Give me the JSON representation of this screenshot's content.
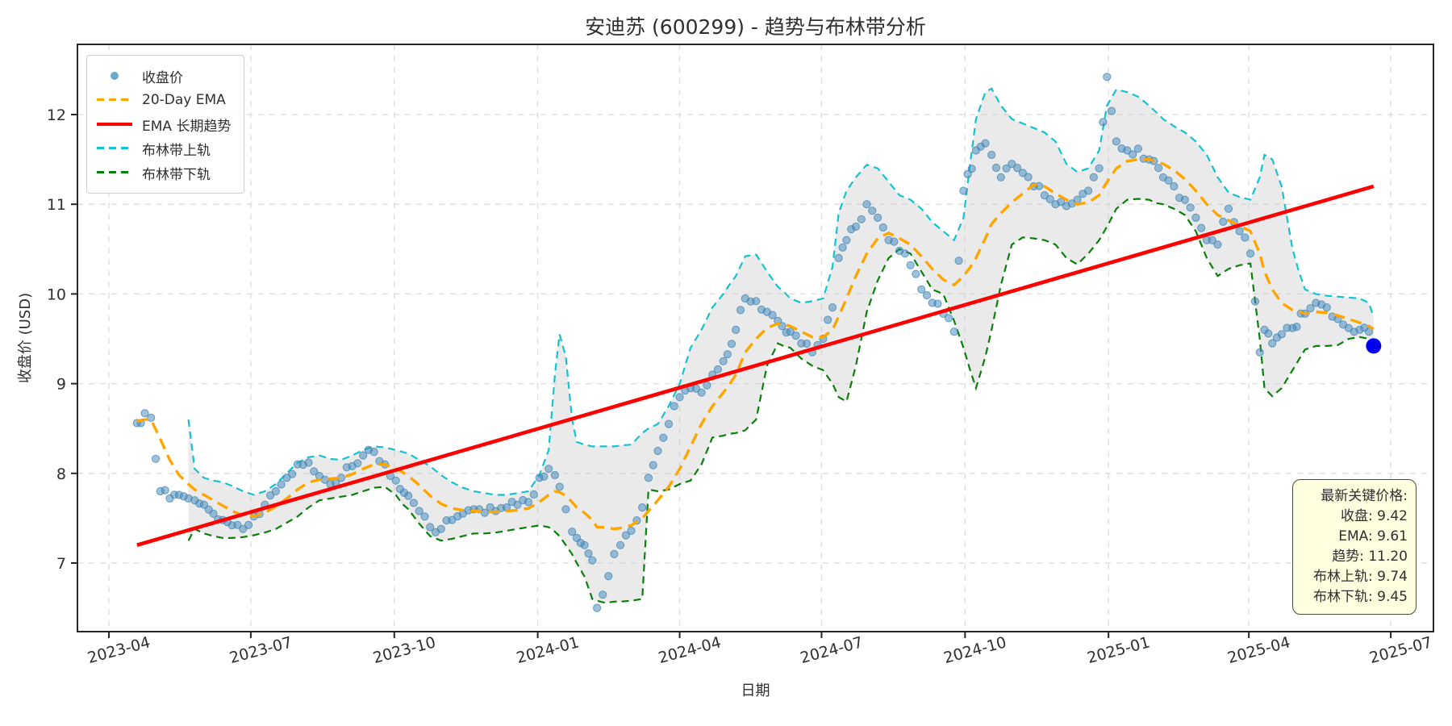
{
  "title": "安迪苏 (600299) - 趋势与布林带分析",
  "xlabel": "日期",
  "ylabel": "收盘价 (USD)",
  "legend": {
    "items": [
      {
        "label": "收盘价",
        "type": "scatter",
        "color": "#4a93c4"
      },
      {
        "label": "20-Day EMA",
        "type": "dashed",
        "color": "#ffa500"
      },
      {
        "label": "EMA 长期趋势",
        "type": "solid",
        "color": "#ff0000"
      },
      {
        "label": "布林带上轨",
        "type": "dashed",
        "color": "#15c2cf"
      },
      {
        "label": "布林带下轨",
        "type": "dashed",
        "color": "#0a800a"
      }
    ]
  },
  "annotation": {
    "title": "最新关键价格:",
    "lines": [
      "收盘: 9.42",
      "EMA: 9.61",
      "趋势: 11.20",
      "布林上轨: 9.74",
      "布林下轨: 9.45"
    ]
  },
  "colors": {
    "close_scatter": "#3d85b8",
    "ema": "#ffa500",
    "trend": "#ff0000",
    "upper_band": "#15c2cf",
    "lower_band": "#0a800a",
    "band_fill": "#c9c9c9",
    "last_point": "#0000ee",
    "grid": "#dcdcdc",
    "spine": "#262626",
    "text": "#2f2f2f",
    "annotation_bg": "#ffffe0"
  },
  "axes": {
    "yticks": [
      7,
      8,
      9,
      10,
      11,
      12
    ],
    "xtick_labels": [
      "2023-04",
      "2023-07",
      "2023-10",
      "2024-01",
      "2024-04",
      "2024-07",
      "2024-10",
      "2025-01",
      "2025-04",
      "2025-07"
    ],
    "ylim": [
      6.24,
      12.77
    ],
    "grid": "dashed"
  },
  "chart_data": {
    "type": "scatter+line+band",
    "title": "安迪苏 (600299) - 趋势与布林带分析",
    "xlabel": "日期",
    "ylabel": "收盘价 (USD)",
    "anchor_dates": [
      "2023-04-19",
      "2023-04-24",
      "2023-04-28",
      "2023-05-04",
      "2023-05-10",
      "2023-05-16",
      "2023-05-22",
      "2023-05-26",
      "2023-06-01",
      "2023-06-07",
      "2023-06-13",
      "2023-06-19",
      "2023-06-26",
      "2023-07-03",
      "2023-07-10",
      "2023-07-17",
      "2023-07-24",
      "2023-07-31",
      "2023-08-07",
      "2023-08-14",
      "2023-08-21",
      "2023-08-28",
      "2023-09-04",
      "2023-09-11",
      "2023-09-18",
      "2023-09-25",
      "2023-10-02",
      "2023-10-10",
      "2023-10-17",
      "2023-10-24",
      "2023-10-31",
      "2023-11-07",
      "2023-11-14",
      "2023-11-21",
      "2023-11-28",
      "2023-12-05",
      "2023-12-12",
      "2023-12-19",
      "2023-12-26",
      "2024-01-02",
      "2024-01-08",
      "2024-01-12",
      "2024-01-15",
      "2024-01-19",
      "2024-01-23",
      "2024-01-26",
      "2024-01-31",
      "2024-02-05",
      "2024-02-08",
      "2024-02-19",
      "2024-02-23",
      "2024-03-01",
      "2024-03-08",
      "2024-03-12",
      "2024-03-18",
      "2024-03-25",
      "2024-04-01",
      "2024-04-08",
      "2024-04-15",
      "2024-04-22",
      "2024-04-29",
      "2024-05-07",
      "2024-05-13",
      "2024-05-20",
      "2024-05-27",
      "2024-06-03",
      "2024-06-11",
      "2024-06-18",
      "2024-06-25",
      "2024-07-02",
      "2024-07-08",
      "2024-07-12",
      "2024-07-17",
      "2024-07-23",
      "2024-07-30",
      "2024-08-06",
      "2024-08-13",
      "2024-08-20",
      "2024-08-27",
      "2024-09-03",
      "2024-09-10",
      "2024-09-17",
      "2024-09-24",
      "2024-09-30",
      "2024-10-08",
      "2024-10-14",
      "2024-10-18",
      "2024-10-24",
      "2024-10-31",
      "2024-11-07",
      "2024-11-14",
      "2024-11-21",
      "2024-11-28",
      "2024-12-05",
      "2024-12-12",
      "2024-12-19",
      "2024-12-26",
      "2024-12-31",
      "2025-01-06",
      "2025-01-13",
      "2025-01-20",
      "2025-01-27",
      "2025-02-05",
      "2025-02-12",
      "2025-02-19",
      "2025-02-26",
      "2025-03-05",
      "2025-03-12",
      "2025-03-19",
      "2025-03-26",
      "2025-04-02",
      "2025-04-08",
      "2025-04-11",
      "2025-04-16",
      "2025-04-22",
      "2025-04-29",
      "2025-05-07",
      "2025-05-14",
      "2025-05-21",
      "2025-05-28",
      "2025-06-04",
      "2025-06-11",
      "2025-06-17",
      "2025-06-20"
    ],
    "series": [
      {
        "name": "收盘价",
        "style": "scatter",
        "values": [
          8.56,
          8.67,
          8.62,
          7.8,
          7.72,
          7.76,
          7.72,
          7.7,
          7.65,
          7.55,
          7.48,
          7.42,
          7.38,
          7.52,
          7.65,
          7.8,
          7.95,
          8.1,
          8.12,
          7.97,
          7.88,
          7.95,
          8.08,
          8.2,
          8.24,
          8.1,
          7.92,
          7.75,
          7.58,
          7.4,
          7.38,
          7.48,
          7.55,
          7.6,
          7.56,
          7.58,
          7.62,
          7.65,
          7.68,
          7.95,
          8.05,
          7.98,
          7.85,
          7.6,
          7.35,
          7.28,
          7.2,
          7.03,
          6.5,
          7.1,
          7.2,
          7.36,
          7.62,
          7.95,
          8.25,
          8.55,
          8.85,
          8.95,
          8.9,
          9.1,
          9.25,
          9.6,
          9.95,
          9.92,
          9.8,
          9.7,
          9.58,
          9.45,
          9.35,
          9.5,
          9.85,
          10.4,
          10.6,
          10.75,
          11.0,
          10.85,
          10.6,
          10.48,
          10.32,
          10.05,
          9.9,
          9.78,
          9.58,
          11.15,
          11.6,
          11.68,
          11.55,
          11.3,
          11.45,
          11.35,
          11.2,
          11.1,
          11.0,
          10.98,
          11.05,
          11.15,
          11.4,
          12.42,
          11.7,
          11.6,
          11.62,
          11.5,
          11.3,
          11.2,
          11.05,
          10.85,
          10.6,
          10.55,
          10.95,
          10.7,
          10.45,
          9.35,
          9.6,
          9.45,
          9.55,
          9.62,
          9.78,
          9.9,
          9.85,
          9.72,
          9.62,
          9.6,
          9.58,
          9.42
        ]
      },
      {
        "name": "20-Day EMA",
        "style": "dashed-line",
        "values": [
          8.58,
          8.6,
          8.6,
          8.38,
          8.15,
          7.98,
          7.88,
          7.82,
          7.76,
          7.7,
          7.64,
          7.58,
          7.53,
          7.52,
          7.56,
          7.63,
          7.72,
          7.82,
          7.9,
          7.93,
          7.94,
          7.95,
          7.99,
          8.05,
          8.1,
          8.1,
          8.05,
          7.97,
          7.87,
          7.75,
          7.66,
          7.61,
          7.59,
          7.58,
          7.57,
          7.57,
          7.58,
          7.59,
          7.61,
          7.68,
          7.76,
          7.8,
          7.79,
          7.75,
          7.68,
          7.62,
          7.56,
          7.48,
          7.4,
          7.38,
          7.39,
          7.42,
          7.5,
          7.58,
          7.7,
          7.85,
          8.05,
          8.3,
          8.55,
          8.75,
          8.9,
          9.1,
          9.35,
          9.5,
          9.62,
          9.67,
          9.64,
          9.58,
          9.52,
          9.52,
          9.6,
          9.75,
          9.95,
          10.2,
          10.45,
          10.62,
          10.68,
          10.62,
          10.55,
          10.42,
          10.28,
          10.16,
          10.1,
          10.2,
          10.4,
          10.62,
          10.78,
          10.9,
          11.02,
          11.12,
          11.22,
          11.2,
          11.12,
          11.05,
          11.0,
          11.02,
          11.1,
          11.25,
          11.4,
          11.48,
          11.5,
          11.5,
          11.45,
          11.38,
          11.28,
          11.15,
          11.0,
          10.88,
          10.82,
          10.76,
          10.7,
          10.45,
          10.25,
          10.05,
          9.9,
          9.82,
          9.78,
          9.8,
          9.79,
          9.76,
          9.72,
          9.68,
          9.64,
          9.61
        ]
      },
      {
        "name": "布林带上轨",
        "style": "dashed-line",
        "values": [
          null,
          null,
          null,
          null,
          null,
          null,
          8.6,
          8.05,
          7.95,
          7.92,
          7.9,
          7.86,
          7.8,
          7.76,
          7.8,
          7.88,
          8.0,
          8.12,
          8.18,
          8.2,
          8.16,
          8.15,
          8.2,
          8.26,
          8.3,
          8.29,
          8.26,
          8.22,
          8.15,
          8.08,
          7.98,
          7.9,
          7.84,
          7.8,
          7.78,
          7.76,
          7.76,
          7.78,
          7.8,
          7.98,
          8.26,
          9.1,
          9.55,
          9.3,
          8.6,
          8.35,
          8.32,
          8.3,
          8.3,
          8.3,
          8.31,
          8.32,
          8.45,
          8.5,
          8.55,
          8.75,
          9.0,
          9.4,
          9.6,
          9.85,
          10.0,
          10.2,
          10.42,
          10.44,
          10.25,
          10.08,
          9.95,
          9.9,
          9.92,
          9.95,
          10.3,
          10.9,
          11.15,
          11.3,
          11.44,
          11.4,
          11.25,
          11.1,
          11.05,
          10.95,
          10.8,
          10.7,
          10.6,
          10.85,
          11.95,
          12.25,
          12.29,
          12.1,
          11.95,
          11.9,
          11.85,
          11.8,
          11.7,
          11.45,
          11.36,
          11.4,
          11.6,
          12.1,
          12.28,
          12.25,
          12.2,
          12.1,
          11.95,
          11.87,
          11.8,
          11.7,
          11.55,
          11.3,
          11.13,
          11.08,
          11.05,
          11.3,
          11.55,
          11.5,
          11.2,
          10.5,
          10.05,
          10.0,
          9.98,
          9.97,
          9.96,
          9.95,
          9.9,
          9.74
        ]
      },
      {
        "name": "布林带下轨",
        "style": "dashed-line",
        "values": [
          null,
          null,
          null,
          null,
          null,
          null,
          7.25,
          7.38,
          7.33,
          7.3,
          7.28,
          7.28,
          7.29,
          7.31,
          7.34,
          7.38,
          7.45,
          7.52,
          7.62,
          7.7,
          7.72,
          7.74,
          7.76,
          7.8,
          7.84,
          7.85,
          7.76,
          7.6,
          7.44,
          7.3,
          7.25,
          7.27,
          7.3,
          7.33,
          7.33,
          7.34,
          7.36,
          7.38,
          7.4,
          7.42,
          7.4,
          7.35,
          7.3,
          7.2,
          7.1,
          7.0,
          6.85,
          6.6,
          6.58,
          6.57,
          6.57,
          6.58,
          6.6,
          7.82,
          7.8,
          7.82,
          7.88,
          7.92,
          8.1,
          8.4,
          8.42,
          8.45,
          8.48,
          8.6,
          9.2,
          9.45,
          9.4,
          9.28,
          9.2,
          9.15,
          9.0,
          8.85,
          8.8,
          9.2,
          9.8,
          10.15,
          10.4,
          10.5,
          10.45,
          10.25,
          10.05,
          10.0,
          9.7,
          9.4,
          8.95,
          9.3,
          9.6,
          10.1,
          10.55,
          10.63,
          10.62,
          10.6,
          10.55,
          10.4,
          10.33,
          10.45,
          10.6,
          10.75,
          10.95,
          11.05,
          11.06,
          11.05,
          11.0,
          10.95,
          10.88,
          10.7,
          10.4,
          10.2,
          10.28,
          10.32,
          10.34,
          9.5,
          8.95,
          8.86,
          8.95,
          9.15,
          9.38,
          9.42,
          9.42,
          9.43,
          9.5,
          9.52,
          9.5,
          9.45
        ]
      }
    ],
    "trend": {
      "name": "EMA 长期趋势",
      "start": {
        "date": "2023-04-19",
        "value": 7.2
      },
      "end": {
        "date": "2025-06-20",
        "value": 11.2
      }
    },
    "last_point": {
      "date": "2025-06-20",
      "value": 9.42
    },
    "latest_values": {
      "close": 9.42,
      "ema": 9.61,
      "trend": 11.2,
      "upper_band": 9.74,
      "lower_band": 9.45
    },
    "legend_position": "upper-left",
    "band_fill_between": [
      "布林带上轨",
      "布林带下轨"
    ]
  }
}
